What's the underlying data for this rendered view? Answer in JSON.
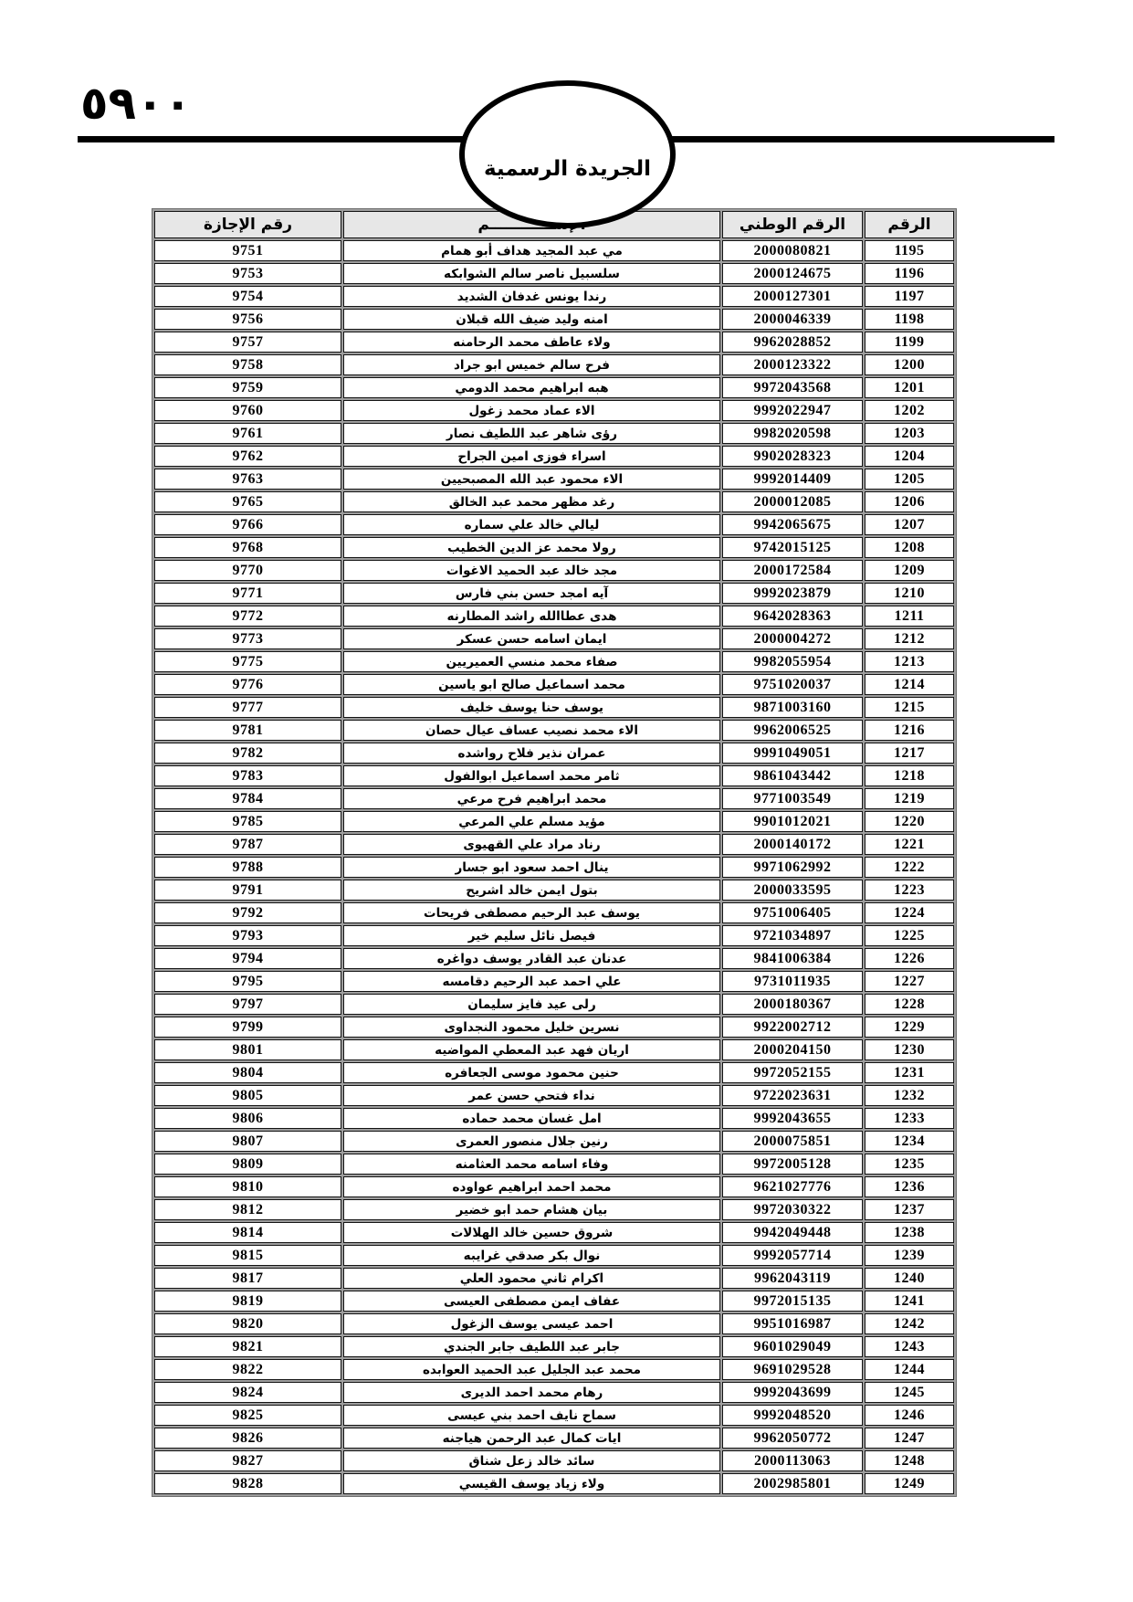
{
  "page": {
    "page_number": "٥٩٠٠",
    "gazette_title": "الجريدة الرسمية"
  },
  "table": {
    "headers": {
      "seq": "الرقم",
      "national_id": "الرقم الوطني",
      "name": "الإســــــــــــم",
      "license": "رقم الإجازة"
    },
    "rows": [
      {
        "seq": "1195",
        "national_id": "2000080821",
        "name": "مي عبد المجيد هداف أبو همام",
        "license": "9751"
      },
      {
        "seq": "1196",
        "national_id": "2000124675",
        "name": "سلسبيل ناصر سالم الشوابكه",
        "license": "9753"
      },
      {
        "seq": "1197",
        "national_id": "2000127301",
        "name": "رندا يونس غدفان الشديد",
        "license": "9754"
      },
      {
        "seq": "1198",
        "national_id": "2000046339",
        "name": "امنه وليد ضيف الله قبلان",
        "license": "9756"
      },
      {
        "seq": "1199",
        "national_id": "9962028852",
        "name": "ولاء عاطف محمد الرحامنه",
        "license": "9757"
      },
      {
        "seq": "1200",
        "national_id": "2000123322",
        "name": "فرح سالم خميس ابو جراد",
        "license": "9758"
      },
      {
        "seq": "1201",
        "national_id": "9972043568",
        "name": "هبه ابراهيم محمد الدومي",
        "license": "9759"
      },
      {
        "seq": "1202",
        "national_id": "9992022947",
        "name": "الاء عماد محمد زغول",
        "license": "9760"
      },
      {
        "seq": "1203",
        "national_id": "9982020598",
        "name": "رؤى شاهر عبد اللطيف نصار",
        "license": "9761"
      },
      {
        "seq": "1204",
        "national_id": "9902028323",
        "name": "اسراء فوزى امين الجراح",
        "license": "9762"
      },
      {
        "seq": "1205",
        "national_id": "9992014409",
        "name": "الاء محمود عبد الله المصبحيين",
        "license": "9763"
      },
      {
        "seq": "1206",
        "national_id": "2000012085",
        "name": "رغد مظهر محمد عبد الخالق",
        "license": "9765"
      },
      {
        "seq": "1207",
        "national_id": "9942065675",
        "name": "ليالي خالد علي سماره",
        "license": "9766"
      },
      {
        "seq": "1208",
        "national_id": "9742015125",
        "name": "رولا محمد عز الدين الخطيب",
        "license": "9768"
      },
      {
        "seq": "1209",
        "national_id": "2000172584",
        "name": "مجد خالد عبد الحميد الاغوات",
        "license": "9770"
      },
      {
        "seq": "1210",
        "national_id": "9992023879",
        "name": "آيه امجد حسن بني فارس",
        "license": "9771"
      },
      {
        "seq": "1211",
        "national_id": "9642028363",
        "name": "هدى عطاالله راشد المطارنه",
        "license": "9772"
      },
      {
        "seq": "1212",
        "national_id": "2000004272",
        "name": "ايمان اسامه حسن عسكر",
        "license": "9773"
      },
      {
        "seq": "1213",
        "national_id": "9982055954",
        "name": "صفاء محمد منسي العميريين",
        "license": "9775"
      },
      {
        "seq": "1214",
        "national_id": "9751020037",
        "name": "محمد اسماعيل صالح ابو ياسين",
        "license": "9776"
      },
      {
        "seq": "1215",
        "national_id": "9871003160",
        "name": "يوسف حنا يوسف خليف",
        "license": "9777"
      },
      {
        "seq": "1216",
        "national_id": "9962006525",
        "name": "الاء محمد نصيب عساف  عيال حصان",
        "license": "9781"
      },
      {
        "seq": "1217",
        "national_id": "9991049051",
        "name": "عمران نذير فلاح رواشده",
        "license": "9782"
      },
      {
        "seq": "1218",
        "national_id": "9861043442",
        "name": "ثامر محمد اسماعيل ابوالفول",
        "license": "9783"
      },
      {
        "seq": "1219",
        "national_id": "9771003549",
        "name": "محمد ابراهيم فرح مرعي",
        "license": "9784"
      },
      {
        "seq": "1220",
        "national_id": "9901012021",
        "name": "مؤيد مسلم علي المرعي",
        "license": "9785"
      },
      {
        "seq": "1221",
        "national_id": "2000140172",
        "name": "رناد مراد علي القهيوى",
        "license": "9787"
      },
      {
        "seq": "1222",
        "national_id": "9971062992",
        "name": "ينال احمد سعود ابو جسار",
        "license": "9788"
      },
      {
        "seq": "1223",
        "national_id": "2000033595",
        "name": "بتول ايمن خالد اشريح",
        "license": "9791"
      },
      {
        "seq": "1224",
        "national_id": "9751006405",
        "name": "يوسف عبد الرحيم مصطفى فريحات",
        "license": "9792"
      },
      {
        "seq": "1225",
        "national_id": "9721034897",
        "name": "فيصل نائل سليم خير",
        "license": "9793"
      },
      {
        "seq": "1226",
        "national_id": "9841006384",
        "name": "عدنان عبد القادر يوسف دواغره",
        "license": "9794"
      },
      {
        "seq": "1227",
        "national_id": "9731011935",
        "name": "علي احمد عبد الرحيم دقامسه",
        "license": "9795"
      },
      {
        "seq": "1228",
        "national_id": "2000180367",
        "name": "رلى عيد فايز سليمان",
        "license": "9797"
      },
      {
        "seq": "1229",
        "national_id": "9922002712",
        "name": "نسرين خليل محمود النجداوى",
        "license": "9799"
      },
      {
        "seq": "1230",
        "national_id": "2000204150",
        "name": "اريان فهد عبد المعطي المواضيه",
        "license": "9801"
      },
      {
        "seq": "1231",
        "national_id": "9972052155",
        "name": "حنين محمود موسى الجعافره",
        "license": "9804"
      },
      {
        "seq": "1232",
        "national_id": "9722023631",
        "name": "نداء فتحي حسن عمر",
        "license": "9805"
      },
      {
        "seq": "1233",
        "national_id": "9992043655",
        "name": "امل غسان محمد حماده",
        "license": "9806"
      },
      {
        "seq": "1234",
        "national_id": "2000075851",
        "name": "رنين جلال منصور العمرى",
        "license": "9807"
      },
      {
        "seq": "1235",
        "national_id": "9972005128",
        "name": "وفاء اسامه محمد العثامنه",
        "license": "9809"
      },
      {
        "seq": "1236",
        "national_id": "9621027776",
        "name": "محمد احمد ابراهيم عواوده",
        "license": "9810"
      },
      {
        "seq": "1237",
        "national_id": "9972030322",
        "name": "بيان هشام حمد ابو خضير",
        "license": "9812"
      },
      {
        "seq": "1238",
        "national_id": "9942049448",
        "name": "شروق حسين خالد الهلالات",
        "license": "9814"
      },
      {
        "seq": "1239",
        "national_id": "9992057714",
        "name": "نوال بكر صدقي غرايبه",
        "license": "9815"
      },
      {
        "seq": "1240",
        "national_id": "9962043119",
        "name": "اكرام ثاني محمود العلي",
        "license": "9817"
      },
      {
        "seq": "1241",
        "national_id": "9972015135",
        "name": "عفاف ايمن مصطفى العيسى",
        "license": "9819"
      },
      {
        "seq": "1242",
        "national_id": "9951016987",
        "name": "احمد عيسى يوسف الزغول",
        "license": "9820"
      },
      {
        "seq": "1243",
        "national_id": "9601029049",
        "name": "جابر عبد اللطيف جابر الجندي",
        "license": "9821"
      },
      {
        "seq": "1244",
        "national_id": "9691029528",
        "name": "محمد عبد الجليل عبد الحميد العوابده",
        "license": "9822"
      },
      {
        "seq": "1245",
        "national_id": "9992043699",
        "name": "رهام محمد احمد الديرى",
        "license": "9824"
      },
      {
        "seq": "1246",
        "national_id": "9992048520",
        "name": "سماح نايف احمد بني عيسى",
        "license": "9825"
      },
      {
        "seq": "1247",
        "national_id": "9962050772",
        "name": "ايات كمال عبد الرحمن هياجنه",
        "license": "9826"
      },
      {
        "seq": "1248",
        "national_id": "2000113063",
        "name": "سائد خالد زعل شناق",
        "license": "9827"
      },
      {
        "seq": "1249",
        "national_id": "2002985801",
        "name": "ولاء زياد يوسف القيسي",
        "license": "9828"
      }
    ]
  }
}
